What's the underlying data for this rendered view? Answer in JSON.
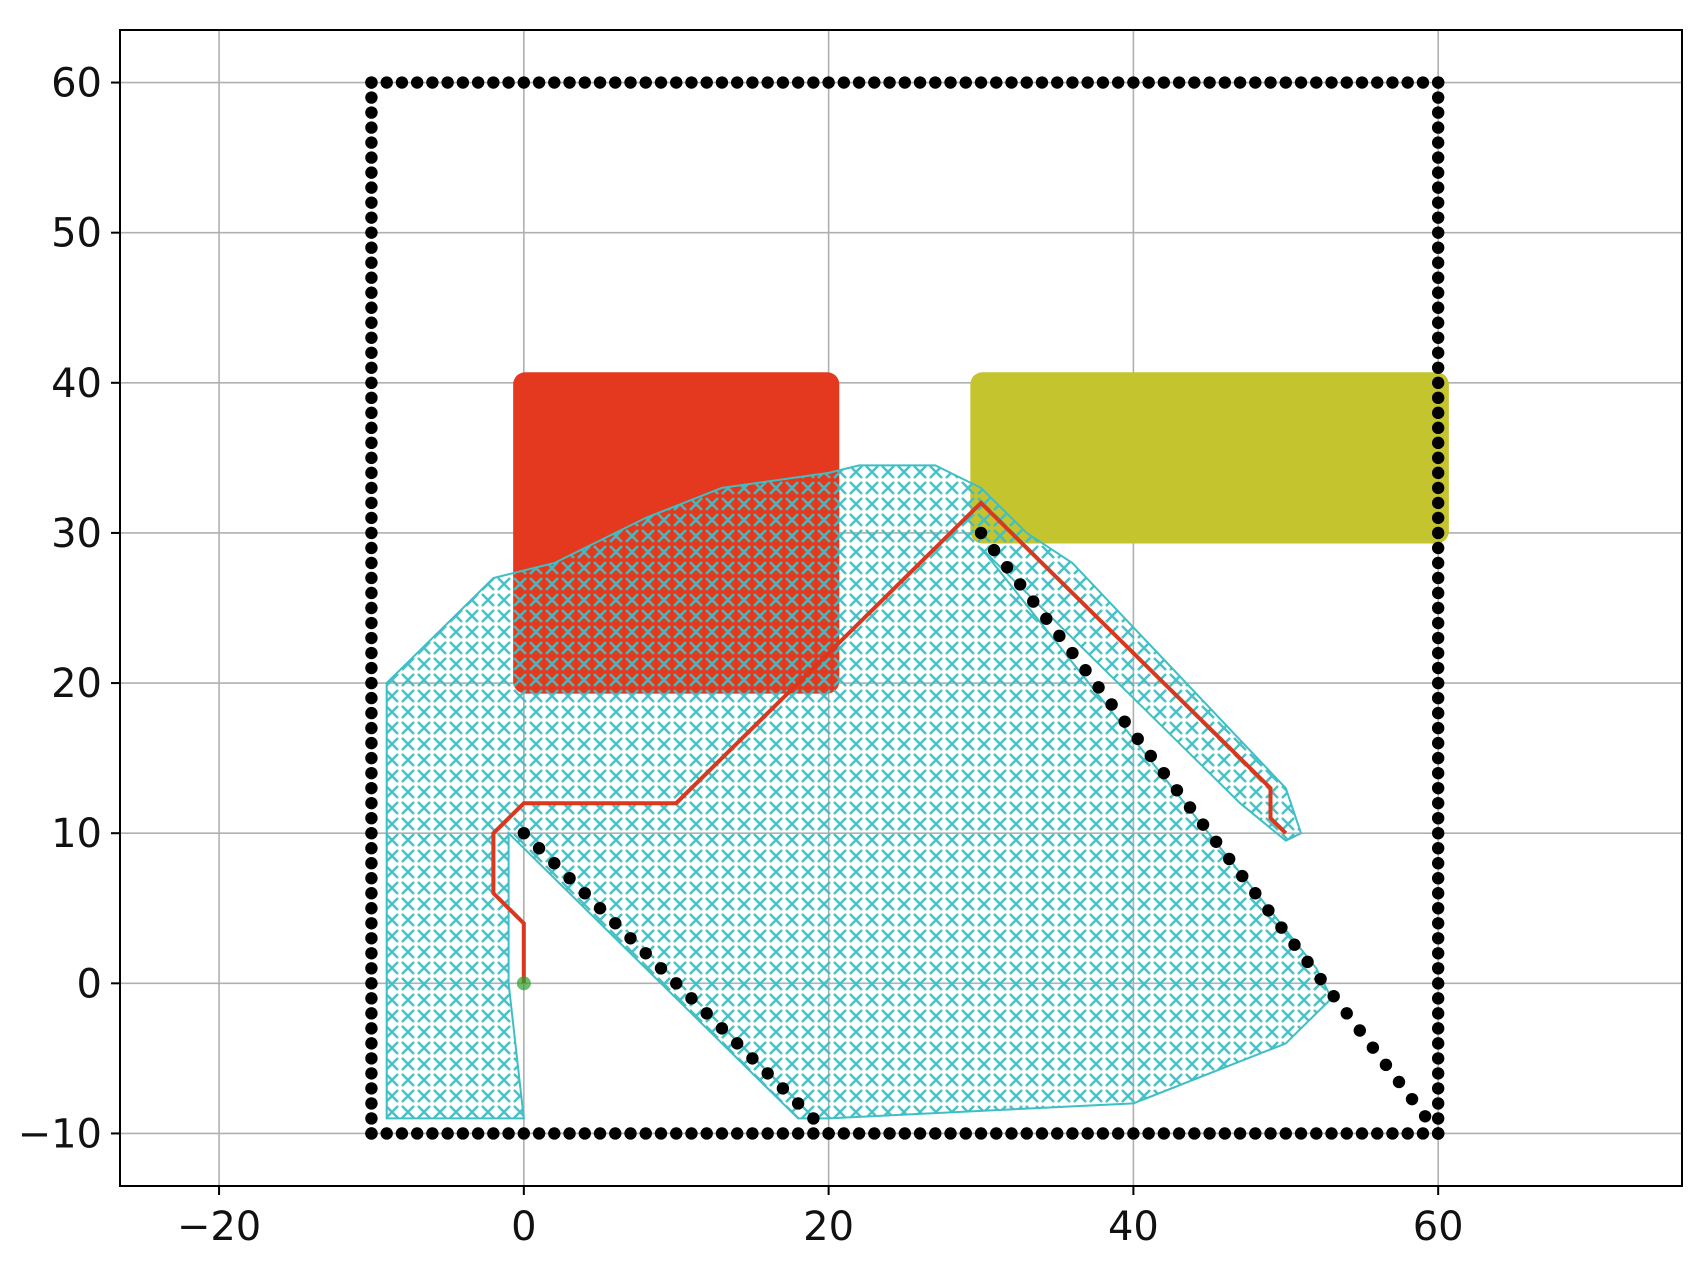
{
  "chart_data": {
    "type": "scatter",
    "title": "",
    "xlabel": "",
    "ylabel": "",
    "xlim": [
      -26.5,
      76
    ],
    "ylim": [
      -13.5,
      63.5
    ],
    "grid": true,
    "x_ticks": [
      {
        "value": -20,
        "label": "−20"
      },
      {
        "value": 0,
        "label": "0"
      },
      {
        "value": 20,
        "label": "20"
      },
      {
        "value": 40,
        "label": "40"
      },
      {
        "value": 60,
        "label": "60"
      }
    ],
    "y_ticks": [
      {
        "value": -10,
        "label": "−10"
      },
      {
        "value": 0,
        "label": "0"
      },
      {
        "value": 10,
        "label": "10"
      },
      {
        "value": 20,
        "label": "20"
      },
      {
        "value": 30,
        "label": "30"
      },
      {
        "value": 40,
        "label": "40"
      },
      {
        "value": 50,
        "label": "50"
      },
      {
        "value": 60,
        "label": "60"
      }
    ],
    "colors": {
      "obstacle": "#000000",
      "explored": "#3fbfc4",
      "region_red": "#e4381f",
      "region_yellow": "#c4c42f",
      "path": "#d9381e",
      "start": "#2ca02c",
      "grid": "#b0b0b0"
    },
    "boundary": {
      "x_min": -10,
      "x_max": 60,
      "y_min": -10,
      "y_max": 60
    },
    "diagonal_walls": [
      {
        "from": [
          0,
          10
        ],
        "to": [
          20,
          -10
        ]
      },
      {
        "from": [
          30,
          30
        ],
        "to": [
          60,
          -10
        ]
      }
    ],
    "regions": [
      {
        "name": "red-region",
        "x": [
          0,
          20
        ],
        "y": [
          20,
          40
        ]
      },
      {
        "name": "yellow-region",
        "x": [
          30,
          60
        ],
        "y": [
          30,
          40
        ]
      }
    ],
    "explored_polygon": [
      [
        -9,
        -9
      ],
      [
        -9,
        20
      ],
      [
        -2,
        27
      ],
      [
        2,
        28
      ],
      [
        8,
        31
      ],
      [
        13,
        33
      ],
      [
        20,
        34
      ],
      [
        22,
        34.5
      ],
      [
        27,
        34.5
      ],
      [
        30,
        33
      ],
      [
        33,
        30
      ],
      [
        36,
        28
      ],
      [
        50,
        13
      ],
      [
        51,
        10
      ],
      [
        50,
        9.5
      ],
      [
        47,
        12
      ],
      [
        35,
        24
      ],
      [
        30,
        29
      ],
      [
        52,
        1
      ],
      [
        53,
        -1
      ],
      [
        50,
        -4
      ],
      [
        40,
        -8
      ],
      [
        20,
        -9
      ],
      [
        18,
        -9
      ],
      [
        0,
        9
      ],
      [
        -1,
        10
      ],
      [
        -1,
        0
      ],
      [
        0,
        -9
      ]
    ],
    "path": [
      [
        0,
        0
      ],
      [
        0,
        4
      ],
      [
        -2,
        6
      ],
      [
        -2,
        10
      ],
      [
        0,
        12
      ],
      [
        10,
        12
      ],
      [
        30,
        32
      ],
      [
        49,
        13
      ],
      [
        49,
        11
      ],
      [
        50,
        10
      ]
    ],
    "start_point": [
      0,
      0
    ]
  }
}
